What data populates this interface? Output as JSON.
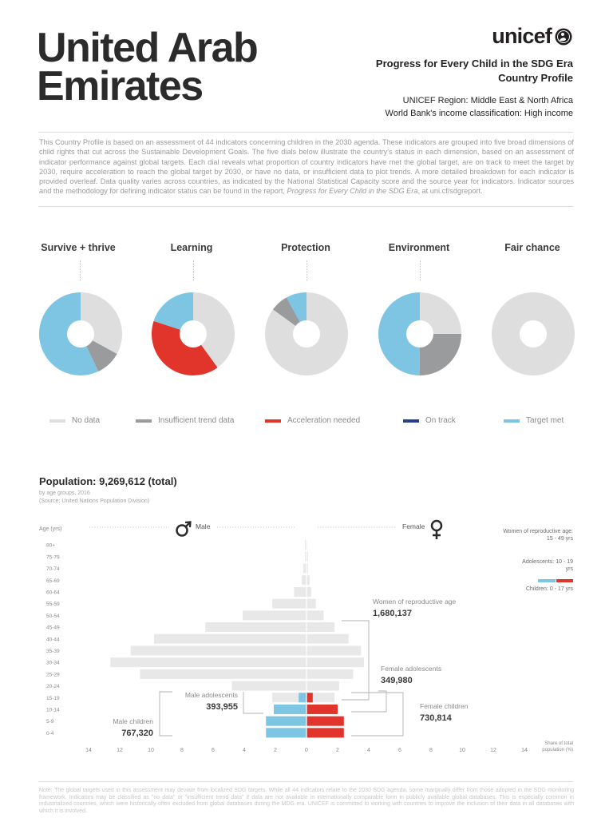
{
  "header": {
    "country_line1": "United Arab",
    "country_line2": "Emirates",
    "logo_text": "unicef",
    "subtitle_line1": "Progress for Every Child in the SDG Era",
    "subtitle_line2": "Country Profile",
    "region_label": "UNICEF Region:",
    "region_value": "Middle East & North Africa",
    "income_label": "World Bank's income classification:",
    "income_value": "High income"
  },
  "intro": {
    "text": "This Country Profile is based on an assessment of 44 indicators concerning children in the 2030 agenda. These indicators are grouped into five broad dimensions of child rights that cut across the Sustainable Development Goals. The five dials below illustrate the country's status in each dimension, based on an assessment of indicator performance against global targets. Each dial reveals what proportion of country indicators have met the global target, are on track to meet the target by 2030, require acceleration to reach the global target by 2030, or have no data, or insufficient data to plot trends. A more detailed breakdown for each indicator is provided overleaf. Data quality varies across countries, as indicated by the National Statistical Capacity score and the source year for indicators. Indicator sources and the methodology for defining indicator status can be found in the report, ",
    "report_title": "Progress for Every Child in the SDG Era",
    "link_prefix": ", at ",
    "link": "uni.cf/sdgreport",
    "end": "."
  },
  "colors": {
    "no_data": "#dedede",
    "insufficient": "#9a9b9c",
    "acceleration": "#e1342a",
    "on_track": "#23408e",
    "target_met": "#7ec4e3",
    "grey_bar": "#e8e8e8",
    "children": "#7ec4e3",
    "adolescents": "#e1342a",
    "male_children_bar": "#7ec4e3",
    "female_children_bar": "#e1342a"
  },
  "dials": [
    {
      "title": "Survive + thrive",
      "segments": [
        {
          "status": "no_data",
          "share": 0.33
        },
        {
          "status": "insufficient",
          "share": 0.1
        },
        {
          "status": "target_met",
          "share": 0.57
        }
      ]
    },
    {
      "title": "Learning",
      "segments": [
        {
          "status": "no_data",
          "share": 0.4
        },
        {
          "status": "acceleration",
          "share": 0.4
        },
        {
          "status": "target_met",
          "share": 0.2
        }
      ]
    },
    {
      "title": "Protection",
      "segments": [
        {
          "status": "no_data",
          "share": 0.85
        },
        {
          "status": "insufficient",
          "share": 0.07
        },
        {
          "status": "target_met",
          "share": 0.08
        }
      ]
    },
    {
      "title": "Environment",
      "segments": [
        {
          "status": "no_data",
          "share": 0.25
        },
        {
          "status": "insufficient",
          "share": 0.25
        },
        {
          "status": "target_met",
          "share": 0.5
        }
      ]
    },
    {
      "title": "Fair chance",
      "segments": [
        {
          "status": "no_data",
          "share": 1.0
        }
      ]
    }
  ],
  "legend": [
    {
      "label": "No data",
      "status": "no_data"
    },
    {
      "label": "Insufficient trend data",
      "status": "insufficient"
    },
    {
      "label": "Acceleration needed",
      "status": "acceleration"
    },
    {
      "label": "On track",
      "status": "on_track"
    },
    {
      "label": "Target met",
      "status": "target_met"
    }
  ],
  "population": {
    "title": "Population: 9,269,612 (total)",
    "sub1": "by age groups, 2016",
    "sub2": "(Source: United Nations Population Division)"
  },
  "side_legend": {
    "women": "Women of reproductive age: 15 - 49 yrs",
    "adolescents": "Adolescents: 10 - 19 yrs",
    "children": "Children: 0 - 17 yrs"
  },
  "chart_data": {
    "type": "bar",
    "orientation": "horizontal-pyramid",
    "age_axis_label": "Age (yrs)",
    "x_axis_label": "Share of total population (%)",
    "left_label": "Male",
    "right_label": "Female",
    "male_icon": "male-symbol-icon",
    "female_icon": "female-symbol-icon",
    "xlim": [
      -14,
      14
    ],
    "x_ticks": [
      -14,
      -12,
      -10,
      -8,
      -6,
      -4,
      -2,
      0,
      2,
      4,
      6,
      8,
      10,
      12,
      14
    ],
    "x_tick_labels": [
      "14",
      "12",
      "10",
      "8",
      "6",
      "4",
      "2",
      "0",
      "2",
      "4",
      "6",
      "8",
      "10",
      "12",
      "14"
    ],
    "age_groups": [
      "0-4",
      "5-9",
      "10-14",
      "15-19",
      "20-24",
      "25-29",
      "30-34",
      "35-39",
      "40-44",
      "45-49",
      "50-54",
      "55-59",
      "60-64",
      "65-69",
      "70-74",
      "75-79",
      "80+"
    ],
    "series": [
      {
        "name": "Male",
        "values": [
          2.6,
          2.6,
          2.1,
          2.2,
          4.8,
          10.7,
          12.6,
          11.3,
          9.8,
          6.5,
          4.1,
          2.2,
          0.8,
          0.3,
          0.2,
          0.1,
          0.1
        ]
      },
      {
        "name": "Female",
        "values": [
          2.4,
          2.4,
          2.0,
          1.8,
          2.1,
          3.0,
          3.7,
          3.5,
          2.7,
          1.8,
          1.1,
          0.6,
          0.3,
          0.2,
          0.1,
          0.1,
          0.05
        ]
      }
    ],
    "highlight": {
      "male_children": [
        2.6,
        2.6,
        2.1,
        0.5
      ],
      "male_adolescents": [
        0,
        0,
        2.1,
        1.2
      ],
      "female_children": [
        2.4,
        2.4,
        2.0,
        0.4
      ],
      "female_adolescents": [
        0,
        0,
        2.0,
        1.1
      ]
    },
    "annotations": [
      {
        "label": "Women of reproductive age",
        "value": "1,680,137"
      },
      {
        "label": "Female adolescents",
        "value": "349,980"
      },
      {
        "label": "Female children",
        "value": "730,814"
      },
      {
        "label": "Male adolescents",
        "value": "393,955"
      },
      {
        "label": "Male children",
        "value": "767,320"
      }
    ]
  },
  "footnote": "Note: The global targets used in this assessment may deviate from localized SDG targets. While all 44 indicators relate to the 2030 SDG agenda, some marginally differ from those adopted in the SDG monitoring framework. Indicators may be classified as \"no data\" or \"insufficient trend data\" if data are not available in internationally comparable form in publicly available global databases. This is especially common in industrialized countries, which were historically often excluded from global databases during the MDG era. UNICEF is committed to working with countries to improve the inclusion of their data in all databases with which it is involved."
}
